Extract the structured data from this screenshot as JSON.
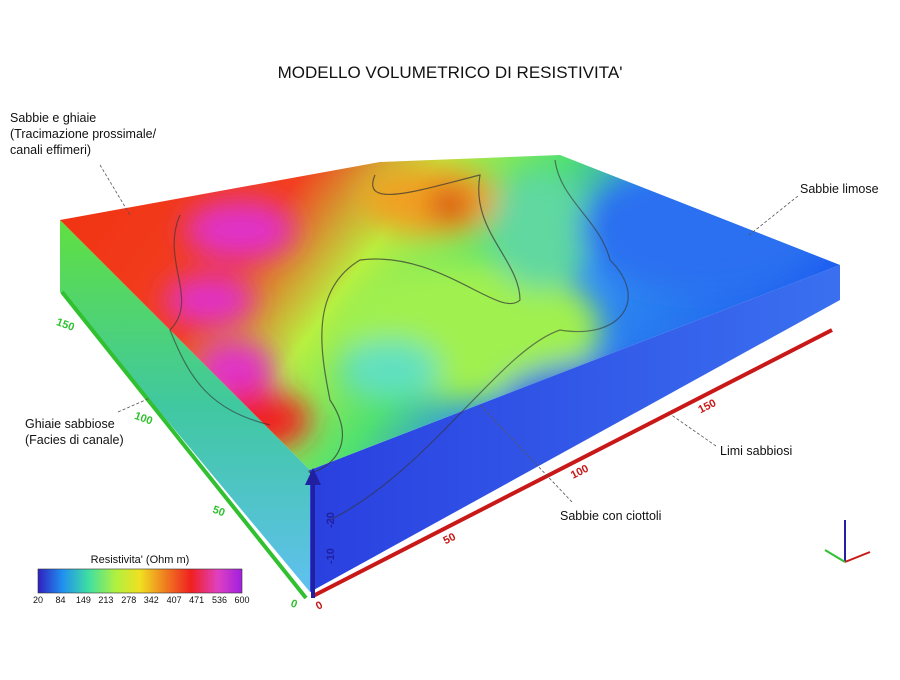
{
  "title": "MODELLO VOLUMETRICO DI RESISTIVITA'",
  "annotations": [
    {
      "lines": [
        "Sabbie e ghiaie",
        "(Tracimazione prossimale/",
        "canali effimeri)"
      ]
    },
    {
      "lines": [
        "Sabbie limose"
      ]
    },
    {
      "lines": [
        "Ghiaie sabbiose",
        "(Facies di canale)"
      ]
    },
    {
      "lines": [
        "Limi sabbiosi"
      ]
    },
    {
      "lines": [
        "Sabbie con ciottoli"
      ]
    }
  ],
  "legend": {
    "title": "Resistivita' (Ohm m)",
    "ticks": [
      20,
      84,
      149,
      213,
      278,
      342,
      407,
      471,
      536,
      600
    ]
  },
  "axes": {
    "x": {
      "ticks": [
        0,
        50,
        100,
        150
      ]
    },
    "y": {
      "ticks": [
        0,
        50,
        100,
        150
      ]
    },
    "z": {
      "ticks": [
        -10,
        -20
      ]
    }
  }
}
